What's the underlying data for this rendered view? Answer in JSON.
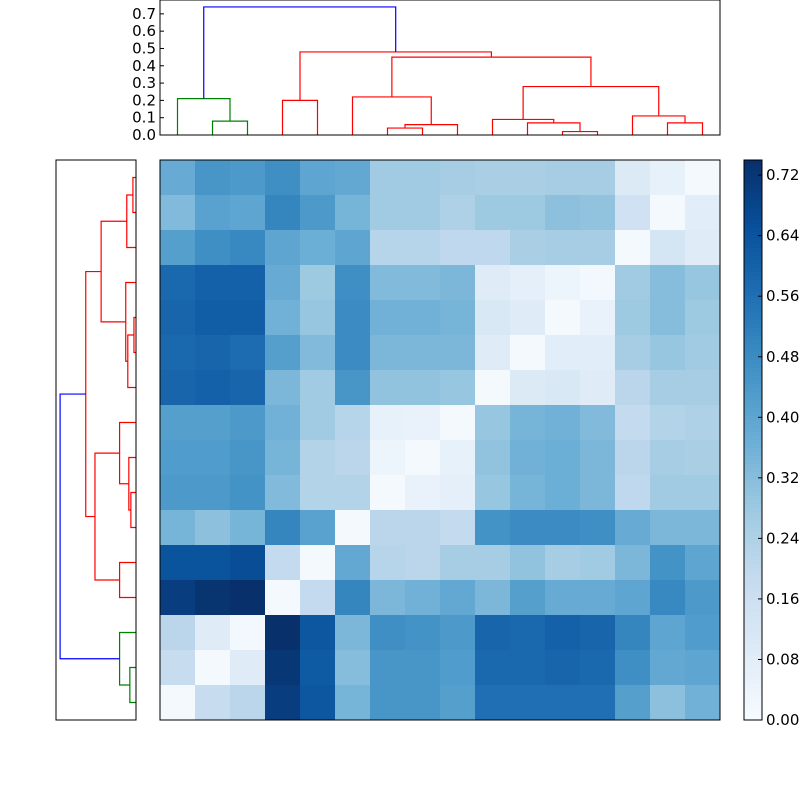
{
  "chart_data": [
    {
      "type": "dendrogram",
      "orientation": "top",
      "ylim": [
        0,
        0.78
      ],
      "ticks": [
        "0.0",
        "0.1",
        "0.2",
        "0.3",
        "0.4",
        "0.5",
        "0.6",
        "0.7"
      ],
      "tick_values": [
        0.0,
        0.1,
        0.2,
        0.3,
        0.4,
        0.5,
        0.6,
        0.7
      ],
      "leaf_count": 16,
      "links": [
        {
          "a": 1,
          "b": 2,
          "h": 0.08,
          "ha": 0.0,
          "hb": 0.0,
          "color": "#008000"
        },
        {
          "a": 0,
          "b": 1.5,
          "h": 0.21,
          "ha": 0.0,
          "hb": 0.08,
          "color": "#008000"
        },
        {
          "a": 3,
          "b": 4,
          "h": 0.2,
          "ha": 0.0,
          "hb": 0.0,
          "color": "#ff0000"
        },
        {
          "a": 6,
          "b": 7,
          "h": 0.04,
          "ha": 0.0,
          "hb": 0.0,
          "color": "#ff0000"
        },
        {
          "a": 6.5,
          "b": 8,
          "h": 0.06,
          "ha": 0.04,
          "hb": 0.0,
          "color": "#ff0000"
        },
        {
          "a": 5,
          "b": 7.25,
          "h": 0.22,
          "ha": 0.0,
          "hb": 0.06,
          "color": "#ff0000"
        },
        {
          "a": 11,
          "b": 12,
          "h": 0.02,
          "ha": 0.0,
          "hb": 0.0,
          "color": "#ff0000"
        },
        {
          "a": 10,
          "b": 11.5,
          "h": 0.07,
          "ha": 0.0,
          "hb": 0.02,
          "color": "#ff0000"
        },
        {
          "a": 9,
          "b": 10.75,
          "h": 0.09,
          "ha": 0.0,
          "hb": 0.07,
          "color": "#ff0000"
        },
        {
          "a": 14,
          "b": 15,
          "h": 0.07,
          "ha": 0.0,
          "hb": 0.0,
          "color": "#ff0000"
        },
        {
          "a": 13,
          "b": 14.5,
          "h": 0.11,
          "ha": 0.0,
          "hb": 0.07,
          "color": "#ff0000"
        },
        {
          "a": 9.875,
          "b": 13.75,
          "h": 0.28,
          "ha": 0.09,
          "hb": 0.11,
          "color": "#ff0000"
        },
        {
          "a": 6.125,
          "b": 11.8125,
          "h": 0.45,
          "ha": 0.22,
          "hb": 0.28,
          "color": "#ff0000"
        },
        {
          "a": 3.5,
          "b": 8.96875,
          "h": 0.48,
          "ha": 0.2,
          "hb": 0.45,
          "color": "#ff0000"
        },
        {
          "a": 0.75,
          "b": 6.234375,
          "h": 0.74,
          "ha": 0.21,
          "hb": 0.48,
          "color": "#0000ff"
        }
      ]
    },
    {
      "type": "dendrogram",
      "orientation": "left",
      "leaf_count": 16,
      "links": [
        {
          "a": 0,
          "b": 1,
          "h": 0.03,
          "ha": 0.0,
          "hb": 0.0,
          "color": "#ff0000"
        },
        {
          "a": 0.5,
          "b": 2,
          "h": 0.09,
          "ha": 0.03,
          "hb": 0.0,
          "color": "#ff0000"
        },
        {
          "a": 4,
          "b": 5,
          "h": 0.02,
          "ha": 0.0,
          "hb": 0.0,
          "color": "#ff0000"
        },
        {
          "a": 4.5,
          "b": 6,
          "h": 0.08,
          "ha": 0.02,
          "hb": 0.0,
          "color": "#ff0000"
        },
        {
          "a": 3,
          "b": 5.25,
          "h": 0.1,
          "ha": 0.0,
          "hb": 0.08,
          "color": "#ff0000"
        },
        {
          "a": 1.25,
          "b": 4.125,
          "h": 0.34,
          "ha": 0.09,
          "hb": 0.1,
          "color": "#ff0000"
        },
        {
          "a": 9,
          "b": 10,
          "h": 0.05,
          "ha": 0.0,
          "hb": 0.0,
          "color": "#ff0000"
        },
        {
          "a": 8,
          "b": 9.5,
          "h": 0.07,
          "ha": 0.0,
          "hb": 0.05,
          "color": "#ff0000"
        },
        {
          "a": 7,
          "b": 8.75,
          "h": 0.16,
          "ha": 0.0,
          "hb": 0.07,
          "color": "#ff0000"
        },
        {
          "a": 11,
          "b": 12,
          "h": 0.16,
          "ha": 0.0,
          "hb": 0.0,
          "color": "#ff0000"
        },
        {
          "a": 7.875,
          "b": 11.5,
          "h": 0.4,
          "ha": 0.16,
          "hb": 0.16,
          "color": "#ff0000"
        },
        {
          "a": 2.6875,
          "b": 9.6875,
          "h": 0.49,
          "ha": 0.34,
          "hb": 0.4,
          "color": "#ff0000"
        },
        {
          "a": 14,
          "b": 15,
          "h": 0.06,
          "ha": 0.0,
          "hb": 0.0,
          "color": "#008000"
        },
        {
          "a": 13,
          "b": 14.5,
          "h": 0.16,
          "ha": 0.0,
          "hb": 0.06,
          "color": "#008000"
        },
        {
          "a": 6.1875,
          "b": 13.75,
          "h": 0.74,
          "ha": 0.49,
          "hb": 0.16,
          "color": "#0000ff"
        }
      ]
    },
    {
      "type": "heatmap",
      "colormap": "Blues",
      "vmin": 0.0,
      "vmax": 0.74,
      "rows": 16,
      "cols": 16,
      "values": [
        [
          0.38,
          0.45,
          0.44,
          0.47,
          0.4,
          0.39,
          0.27,
          0.27,
          0.26,
          0.25,
          0.25,
          0.26,
          0.26,
          0.1,
          0.06,
          0.01
        ],
        [
          0.33,
          0.41,
          0.4,
          0.5,
          0.44,
          0.35,
          0.27,
          0.27,
          0.24,
          0.28,
          0.28,
          0.31,
          0.3,
          0.15,
          0.01,
          0.08
        ],
        [
          0.42,
          0.47,
          0.49,
          0.4,
          0.37,
          0.4,
          0.22,
          0.22,
          0.2,
          0.2,
          0.25,
          0.26,
          0.26,
          0.01,
          0.13,
          0.09
        ],
        [
          0.58,
          0.6,
          0.6,
          0.38,
          0.28,
          0.47,
          0.33,
          0.33,
          0.34,
          0.09,
          0.07,
          0.04,
          0.02,
          0.27,
          0.32,
          0.29
        ],
        [
          0.59,
          0.61,
          0.61,
          0.36,
          0.29,
          0.48,
          0.36,
          0.36,
          0.35,
          0.11,
          0.09,
          0.01,
          0.05,
          0.28,
          0.32,
          0.28
        ],
        [
          0.58,
          0.59,
          0.57,
          0.42,
          0.33,
          0.48,
          0.34,
          0.34,
          0.34,
          0.09,
          0.01,
          0.08,
          0.08,
          0.26,
          0.29,
          0.27
        ],
        [
          0.59,
          0.6,
          0.59,
          0.34,
          0.27,
          0.45,
          0.3,
          0.3,
          0.29,
          0.01,
          0.1,
          0.11,
          0.09,
          0.21,
          0.26,
          0.26
        ],
        [
          0.42,
          0.42,
          0.44,
          0.36,
          0.27,
          0.22,
          0.06,
          0.05,
          0.01,
          0.29,
          0.35,
          0.36,
          0.33,
          0.19,
          0.23,
          0.24
        ],
        [
          0.43,
          0.43,
          0.45,
          0.35,
          0.23,
          0.21,
          0.04,
          0.01,
          0.06,
          0.3,
          0.36,
          0.37,
          0.34,
          0.21,
          0.26,
          0.25
        ],
        [
          0.44,
          0.44,
          0.46,
          0.33,
          0.23,
          0.23,
          0.01,
          0.05,
          0.07,
          0.29,
          0.35,
          0.37,
          0.34,
          0.2,
          0.27,
          0.27
        ],
        [
          0.35,
          0.31,
          0.35,
          0.5,
          0.41,
          0.01,
          0.21,
          0.21,
          0.19,
          0.46,
          0.48,
          0.48,
          0.47,
          0.38,
          0.34,
          0.34
        ],
        [
          0.64,
          0.64,
          0.66,
          0.19,
          0.01,
          0.39,
          0.22,
          0.21,
          0.26,
          0.26,
          0.3,
          0.26,
          0.27,
          0.34,
          0.46,
          0.4
        ],
        [
          0.7,
          0.73,
          0.74,
          0.01,
          0.19,
          0.5,
          0.34,
          0.36,
          0.39,
          0.34,
          0.42,
          0.38,
          0.38,
          0.4,
          0.49,
          0.44
        ],
        [
          0.21,
          0.09,
          0.02,
          0.74,
          0.63,
          0.34,
          0.47,
          0.46,
          0.44,
          0.59,
          0.58,
          0.6,
          0.59,
          0.5,
          0.4,
          0.43
        ],
        [
          0.18,
          0.01,
          0.09,
          0.72,
          0.62,
          0.32,
          0.45,
          0.45,
          0.43,
          0.58,
          0.58,
          0.59,
          0.58,
          0.47,
          0.39,
          0.4
        ],
        [
          0.01,
          0.18,
          0.21,
          0.7,
          0.63,
          0.35,
          0.45,
          0.45,
          0.42,
          0.56,
          0.56,
          0.56,
          0.56,
          0.42,
          0.31,
          0.36
        ]
      ]
    },
    {
      "type": "colorbar",
      "colormap": "Blues",
      "vmin": 0.0,
      "vmax": 0.74,
      "ticks": [
        "0.00",
        "0.08",
        "0.16",
        "0.24",
        "0.32",
        "0.40",
        "0.48",
        "0.56",
        "0.64",
        "0.72"
      ],
      "tick_values": [
        0.0,
        0.08,
        0.16,
        0.24,
        0.32,
        0.4,
        0.48,
        0.56,
        0.64,
        0.72
      ]
    }
  ]
}
